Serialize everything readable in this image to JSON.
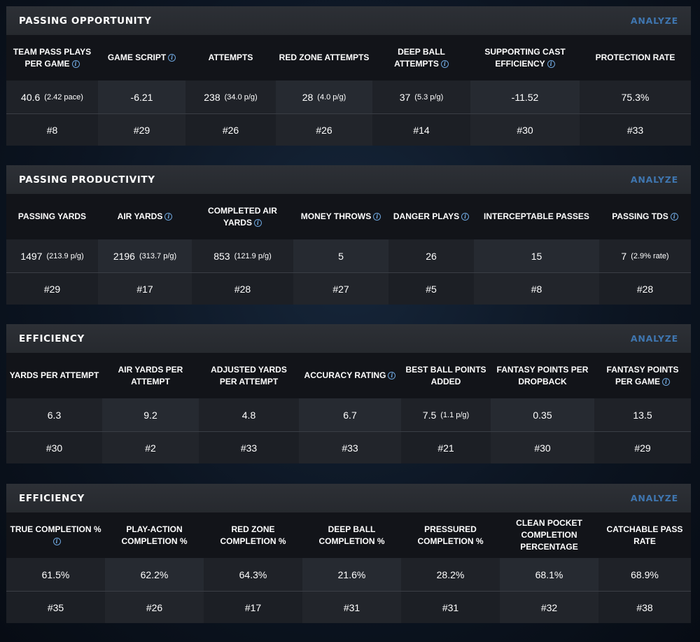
{
  "sections": [
    {
      "title": "PASSING OPPORTUNITY",
      "action": "ANALYZE",
      "columns": [
        {
          "label": "TEAM PASS PLAYS PER GAME",
          "info": true,
          "value": "40.6",
          "sub": "(2.42 pace)",
          "rank": "#8"
        },
        {
          "label": "GAME SCRIPT",
          "info": true,
          "value": "-6.21",
          "sub": "",
          "rank": "#29"
        },
        {
          "label": "ATTEMPTS",
          "info": false,
          "value": "238",
          "sub": "(34.0 p/g)",
          "rank": "#26"
        },
        {
          "label": "RED ZONE ATTEMPTS",
          "info": false,
          "value": "28",
          "sub": "(4.0 p/g)",
          "rank": "#26"
        },
        {
          "label": "DEEP BALL ATTEMPTS",
          "info": true,
          "value": "37",
          "sub": "(5.3 p/g)",
          "rank": "#14"
        },
        {
          "label": "SUPPORTING CAST EFFICIENCY",
          "info": true,
          "value": "-11.52",
          "sub": "",
          "rank": "#30"
        },
        {
          "label": "PROTECTION RATE",
          "info": false,
          "value": "75.3%",
          "sub": "",
          "rank": "#33"
        }
      ]
    },
    {
      "title": "PASSING PRODUCTIVITY",
      "action": "ANALYZE",
      "columns": [
        {
          "label": "PASSING YARDS",
          "info": false,
          "value": "1497",
          "sub": "(213.9 p/g)",
          "rank": "#29"
        },
        {
          "label": "AIR YARDS",
          "info": true,
          "value": "2196",
          "sub": "(313.7 p/g)",
          "rank": "#17"
        },
        {
          "label": "COMPLETED AIR YARDS",
          "info": true,
          "value": "853",
          "sub": "(121.9 p/g)",
          "rank": "#28"
        },
        {
          "label": "MONEY THROWS",
          "info": true,
          "value": "5",
          "sub": "",
          "rank": "#27"
        },
        {
          "label": "DANGER PLAYS",
          "info": true,
          "value": "26",
          "sub": "",
          "rank": "#5"
        },
        {
          "label": "INTERCEPTABLE PASSES",
          "info": false,
          "value": "15",
          "sub": "",
          "rank": "#8"
        },
        {
          "label": "PASSING TDS",
          "info": true,
          "value": "7",
          "sub": "(2.9% rate)",
          "rank": "#28"
        }
      ]
    },
    {
      "title": "EFFICIENCY",
      "action": "ANALYZE",
      "columns": [
        {
          "label": "YARDS PER ATTEMPT",
          "info": false,
          "value": "6.3",
          "sub": "",
          "rank": "#30"
        },
        {
          "label": "AIR YARDS PER ATTEMPT",
          "info": false,
          "value": "9.2",
          "sub": "",
          "rank": "#2"
        },
        {
          "label": "ADJUSTED YARDS PER ATTEMPT",
          "info": false,
          "value": "4.8",
          "sub": "",
          "rank": "#33"
        },
        {
          "label": "ACCURACY RATING",
          "info": true,
          "value": "6.7",
          "sub": "",
          "rank": "#33"
        },
        {
          "label": "BEST BALL POINTS ADDED",
          "info": false,
          "value": "7.5",
          "sub": "(1.1 p/g)",
          "rank": "#21"
        },
        {
          "label": "FANTASY POINTS PER DROPBACK",
          "info": false,
          "value": "0.35",
          "sub": "",
          "rank": "#30"
        },
        {
          "label": "FANTASY POINTS PER GAME",
          "info": true,
          "value": "13.5",
          "sub": "",
          "rank": "#29"
        }
      ]
    },
    {
      "title": "EFFICIENCY",
      "action": "ANALYZE",
      "columns": [
        {
          "label": "TRUE COMPLETION %",
          "info": true,
          "value": "61.5%",
          "sub": "",
          "rank": "#35"
        },
        {
          "label": "PLAY-ACTION COMPLETION %",
          "info": false,
          "value": "62.2%",
          "sub": "",
          "rank": "#26"
        },
        {
          "label": "RED ZONE COMPLETION %",
          "info": false,
          "value": "64.3%",
          "sub": "",
          "rank": "#17"
        },
        {
          "label": "DEEP BALL COMPLETION %",
          "info": false,
          "value": "21.6%",
          "sub": "",
          "rank": "#31"
        },
        {
          "label": "PRESSURED COMPLETION %",
          "info": false,
          "value": "28.2%",
          "sub": "",
          "rank": "#31"
        },
        {
          "label": "CLEAN POCKET COMPLETION PERCENTAGE",
          "info": false,
          "value": "68.1%",
          "sub": "",
          "rank": "#32"
        },
        {
          "label": "CATCHABLE PASS RATE",
          "info": false,
          "value": "68.9%",
          "sub": "",
          "rank": "#38"
        }
      ]
    }
  ],
  "icons": {
    "info": "info-circle-icon"
  },
  "colors": {
    "accent": "#3f76b0",
    "info": "#6ea6dd",
    "panel": "#1c1f25",
    "header": "#2b2e33"
  }
}
